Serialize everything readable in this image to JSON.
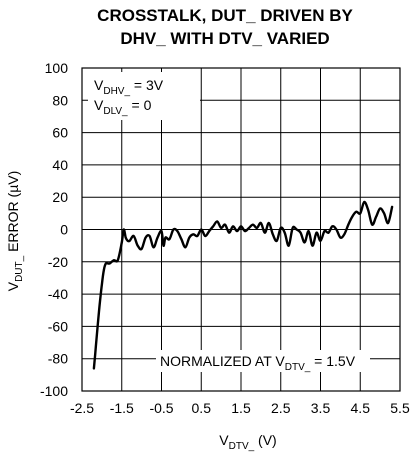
{
  "chart_data": {
    "type": "line",
    "title_line1": "CROSSTALK, DUT_ DRIVEN BY",
    "title_line2": "DHV_ WITH DTV_ VARIED",
    "xlabel": {
      "main": "V",
      "sub": "DTV_",
      "tail": " (V)"
    },
    "ylabel": {
      "main": "V",
      "sub": "DUT_",
      "tail": " ERROR (µV)"
    },
    "xlim": [
      -2.5,
      5.5
    ],
    "ylim": [
      -100,
      100
    ],
    "x_ticks": [
      "-2.5",
      "-1.5",
      "-0.5",
      "0.5",
      "1.5",
      "2.5",
      "3.5",
      "4.5",
      "5.5"
    ],
    "y_ticks": [
      "100",
      "80",
      "60",
      "40",
      "20",
      "0",
      "-20",
      "-40",
      "-60",
      "-80",
      "-100"
    ],
    "grid": true,
    "annotation_top": {
      "line1": {
        "main": "V",
        "sub": "DHV_",
        "tail": " = 3V"
      },
      "line2": {
        "main": "V",
        "sub": "DLV_",
        "tail": " = 0"
      }
    },
    "annotation_bottom": {
      "main": "NORMALIZED AT V",
      "sub": "DTV_",
      "tail": " = 1.5V"
    },
    "series": [
      {
        "x": [
          -2.2,
          -2.15,
          -2.1,
          -2.05,
          -2.0,
          -1.95,
          -1.9,
          -1.85,
          -1.8,
          -1.7,
          -1.6,
          -1.5,
          -1.45,
          -1.4,
          -1.35,
          -1.3,
          -1.2,
          -1.1,
          -1.0,
          -0.9,
          -0.8,
          -0.7,
          -0.6,
          -0.5,
          -0.45,
          -0.4,
          -0.3,
          -0.2,
          -0.1,
          0.0,
          0.1,
          0.2,
          0.3,
          0.4,
          0.5,
          0.6,
          0.7,
          0.8,
          0.9,
          1.0,
          1.1,
          1.2,
          1.3,
          1.4,
          1.5,
          1.6,
          1.7,
          1.8,
          1.9,
          2.0,
          2.1,
          2.2,
          2.3,
          2.4,
          2.5,
          2.6,
          2.7,
          2.8,
          2.9,
          3.0,
          3.1,
          3.2,
          3.3,
          3.4,
          3.5,
          3.6,
          3.7,
          3.8,
          3.9,
          4.0,
          4.1,
          4.2,
          4.3,
          4.4,
          4.5,
          4.6,
          4.7,
          4.8,
          4.9,
          5.0,
          5.1,
          5.2,
          5.3
        ],
        "y": [
          -86,
          -72,
          -58,
          -45,
          -34,
          -25,
          -21,
          -21,
          -21,
          -19,
          -19,
          -8,
          0,
          -5,
          -7,
          -7,
          -4,
          -10,
          -12,
          -5,
          -4,
          -11,
          -5,
          -1,
          -10,
          -5,
          -6,
          0,
          -1,
          -6,
          -11,
          -5,
          -3,
          -4,
          0,
          -4,
          -1,
          2,
          5,
          1,
          3,
          -2,
          2,
          -1,
          2,
          -1,
          1,
          3,
          1,
          4,
          -2,
          4,
          -3,
          -7,
          1,
          -2,
          -10,
          1,
          0,
          -2,
          -8,
          -1,
          -10,
          -2,
          -7,
          -1,
          -2,
          2,
          0,
          -5,
          -3,
          3,
          8,
          11,
          10,
          17,
          12,
          3,
          8,
          13,
          10,
          4,
          14
        ]
      }
    ]
  }
}
